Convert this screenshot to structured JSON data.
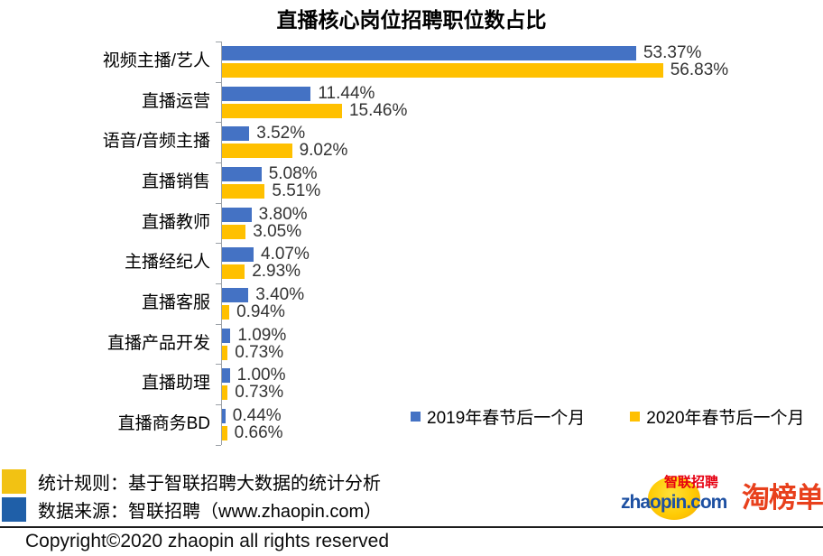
{
  "chart_data": {
    "type": "bar",
    "orientation": "horizontal",
    "title": "直播核心岗位招聘职位数占比",
    "categories": [
      "视频主播/艺人",
      "直播运营",
      "语音/音频主播",
      "直播销售",
      "直播教师",
      "主播经纪人",
      "直播客服",
      "直播产品开发",
      "直播助理",
      "直播商务BD"
    ],
    "series": [
      {
        "name": "2019年春节后一个月",
        "color": "#4472C4",
        "values": [
          53.37,
          11.44,
          3.52,
          5.08,
          3.8,
          4.07,
          3.4,
          1.09,
          1.0,
          0.44
        ]
      },
      {
        "name": "2020年春节后一个月",
        "color": "#FFC000",
        "values": [
          56.83,
          15.46,
          9.02,
          5.51,
          3.05,
          2.93,
          0.94,
          0.73,
          0.73,
          0.66
        ]
      }
    ],
    "value_format": "0.00%",
    "xlim": [
      0,
      58
    ],
    "grid": false,
    "data_labels": true,
    "legend_position": "bottom-right"
  },
  "notes": [
    {
      "icon_color": "#F2C213",
      "text": "统计规则：基于智联招聘大数据的统计分析"
    },
    {
      "icon_color": "#1F5FA8",
      "text": "数据来源：智联招聘（www.zhaopin.com）"
    }
  ],
  "footer": {
    "copyright": "Copyright©2020 zhaopin all rights reserved"
  },
  "logos": {
    "zhaopin_en": "zhaopin.com",
    "zhaopin_cn": "智联招聘",
    "taobangdan": "淘榜单"
  }
}
